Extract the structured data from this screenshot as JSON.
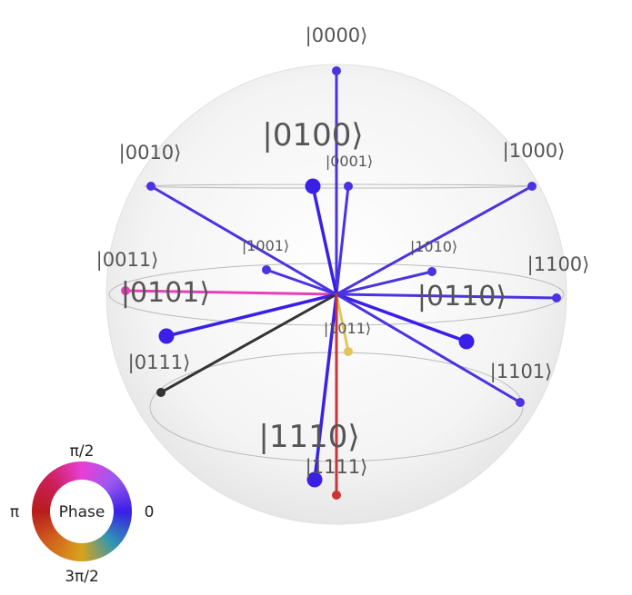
{
  "chart_data": {
    "type": "qsphere",
    "states": [
      {
        "label": "|0000⟩",
        "color": "#4a33e0",
        "size": "small"
      },
      {
        "label": "|0001⟩",
        "color": "#4a33e0",
        "size": "small"
      },
      {
        "label": "|0010⟩",
        "color": "#4a33e0",
        "size": "small"
      },
      {
        "label": "|0011⟩",
        "color": "#e83fb8",
        "size": "small"
      },
      {
        "label": "|0100⟩",
        "color": "#3a1fe6",
        "size": "large"
      },
      {
        "label": "|0101⟩",
        "color": "#3a1fe6",
        "size": "large"
      },
      {
        "label": "|0110⟩",
        "color": "#3a1fe6",
        "size": "large"
      },
      {
        "label": "|0111⟩",
        "color": "#333333",
        "size": "small"
      },
      {
        "label": "|1000⟩",
        "color": "#4a33e0",
        "size": "small"
      },
      {
        "label": "|1001⟩",
        "color": "#4a33e0",
        "size": "small"
      },
      {
        "label": "|1010⟩",
        "color": "#4a33e0",
        "size": "small"
      },
      {
        "label": "|1011⟩",
        "color": "#e3c45a",
        "size": "small"
      },
      {
        "label": "|1100⟩",
        "color": "#4a33e0",
        "size": "small"
      },
      {
        "label": "|1101⟩",
        "color": "#4a33e0",
        "size": "small"
      },
      {
        "label": "|1110⟩",
        "color": "#3a1fe6",
        "size": "large"
      },
      {
        "label": "|1111⟩",
        "color": "#cc3333",
        "size": "small"
      }
    ],
    "phase_legend": {
      "center": "Phase",
      "top": "π/2",
      "left": "π",
      "right": "0",
      "bottom": "3π/2"
    }
  }
}
